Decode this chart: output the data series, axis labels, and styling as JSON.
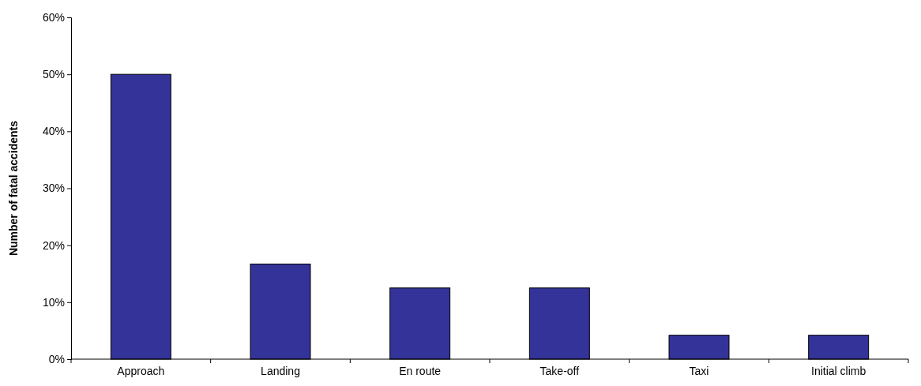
{
  "chart_data": {
    "type": "bar",
    "ylabel": "Number of fatal accidents",
    "categories": [
      "Approach",
      "Landing",
      "En route",
      "Take-off",
      "Taxi",
      "Initial climb"
    ],
    "values": [
      50,
      16.7,
      12.5,
      12.5,
      4.2,
      4.2
    ],
    "color": "#333399",
    "ylim": [
      0,
      60
    ],
    "yticks": [
      {
        "value": 0,
        "label": "0%"
      },
      {
        "value": 10,
        "label": "10%"
      },
      {
        "value": 20,
        "label": "20%"
      },
      {
        "value": 30,
        "label": "30%"
      },
      {
        "value": 40,
        "label": "40%"
      },
      {
        "value": 50,
        "label": "50%"
      },
      {
        "value": 60,
        "label": "60%"
      }
    ],
    "grid": false
  }
}
